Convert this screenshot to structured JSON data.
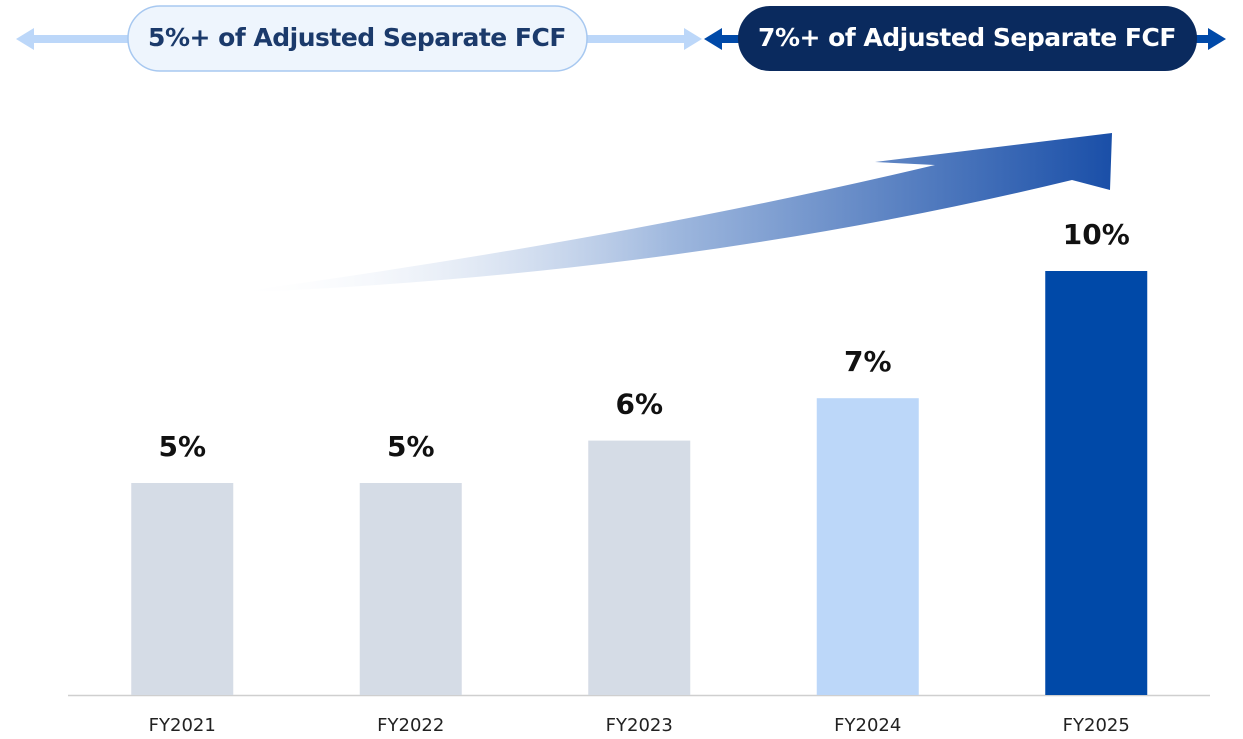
{
  "chart_data": {
    "type": "bar",
    "annotations": [
      "5%+ of Adjusted Separate FCF",
      "7%+ of Adjusted Separate FCF"
    ],
    "categories": [
      "FY2021",
      "FY2022",
      "FY2023",
      "FY2024",
      "FY2025"
    ],
    "values": [
      5,
      5,
      6,
      7,
      10
    ],
    "value_labels": [
      "5%",
      "5%",
      "6%",
      "7%",
      "10%"
    ],
    "colors": [
      "#d5dce6",
      "#d5dce6",
      "#d5dce6",
      "#bcd7f9",
      "#0049a8"
    ]
  }
}
